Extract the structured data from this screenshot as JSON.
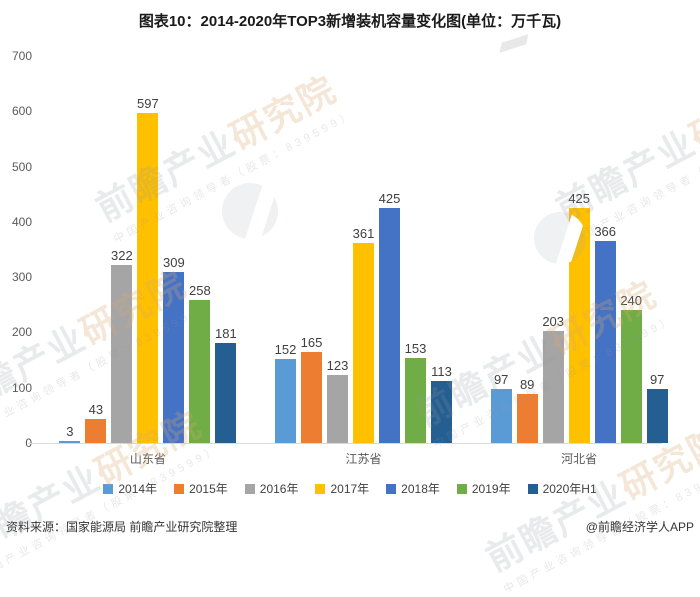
{
  "title": "图表10：2014-2020年TOP3新增装机容量变化图(单位：万千瓦)",
  "chart_data": {
    "type": "bar",
    "categories": [
      "山东省",
      "江苏省",
      "河北省"
    ],
    "series": [
      {
        "name": "2014年",
        "color": "#5B9BD5",
        "values": [
          3,
          152,
          97
        ]
      },
      {
        "name": "2015年",
        "color": "#ED7D31",
        "values": [
          43,
          165,
          89
        ]
      },
      {
        "name": "2016年",
        "color": "#A5A5A5",
        "values": [
          322,
          123,
          203
        ]
      },
      {
        "name": "2017年",
        "color": "#FFC000",
        "values": [
          597,
          361,
          425
        ]
      },
      {
        "name": "2018年",
        "color": "#4472C4",
        "values": [
          309,
          425,
          366
        ]
      },
      {
        "name": "2019年",
        "color": "#70AD47",
        "values": [
          258,
          153,
          240
        ]
      },
      {
        "name": "2020年H1",
        "color": "#255E91",
        "values": [
          181,
          113,
          97
        ]
      }
    ],
    "title": "图表10：2014-2020年TOP3新增装机容量变化图(单位：万千瓦)",
    "xlabel": "",
    "ylabel": "",
    "ylim": [
      0,
      700
    ],
    "yticks": [
      0,
      100,
      200,
      300,
      400,
      500,
      600,
      700
    ],
    "grid": false,
    "legend_position": "bottom",
    "value_labels": true,
    "axis_label_color": "#595959",
    "value_label_color": "#404040",
    "baseline_color": "#D9D9D9"
  },
  "footer": {
    "source": "资料来源：国家能源局 前瞻产业研究院整理",
    "credit": "@前瞻经济学人APP"
  },
  "watermark": {
    "text_primary": "前瞻产业",
    "text_accent": "研究院",
    "subtext": "中国产业咨询领导者（股票：839599）"
  }
}
